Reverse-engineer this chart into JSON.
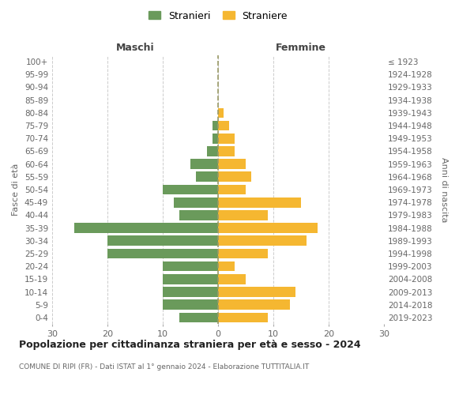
{
  "age_groups": [
    "0-4",
    "5-9",
    "10-14",
    "15-19",
    "20-24",
    "25-29",
    "30-34",
    "35-39",
    "40-44",
    "45-49",
    "50-54",
    "55-59",
    "60-64",
    "65-69",
    "70-74",
    "75-79",
    "80-84",
    "85-89",
    "90-94",
    "95-99",
    "100+"
  ],
  "birth_years": [
    "2019-2023",
    "2014-2018",
    "2009-2013",
    "2004-2008",
    "1999-2003",
    "1994-1998",
    "1989-1993",
    "1984-1988",
    "1979-1983",
    "1974-1978",
    "1969-1973",
    "1964-1968",
    "1959-1963",
    "1954-1958",
    "1949-1953",
    "1944-1948",
    "1939-1943",
    "1934-1938",
    "1929-1933",
    "1924-1928",
    "≤ 1923"
  ],
  "males": [
    7,
    10,
    10,
    10,
    10,
    20,
    20,
    26,
    7,
    8,
    10,
    4,
    5,
    2,
    1,
    1,
    0,
    0,
    0,
    0,
    0
  ],
  "females": [
    9,
    13,
    14,
    5,
    3,
    9,
    16,
    18,
    9,
    15,
    5,
    6,
    5,
    3,
    3,
    2,
    1,
    0,
    0,
    0,
    0
  ],
  "male_color": "#6a9a5b",
  "female_color": "#f5b731",
  "title": "Popolazione per cittadinanza straniera per età e sesso - 2024",
  "subtitle": "COMUNE DI RIPI (FR) - Dati ISTAT al 1° gennaio 2024 - Elaborazione TUTTITALIA.IT",
  "legend_male": "Stranieri",
  "legend_female": "Straniere",
  "label_maschi": "Maschi",
  "label_femmine": "Femmine",
  "ylabel_left": "Fasce di età",
  "ylabel_right": "Anni di nascita",
  "xlim": 30,
  "background_color": "#ffffff",
  "grid_color": "#cccccc"
}
